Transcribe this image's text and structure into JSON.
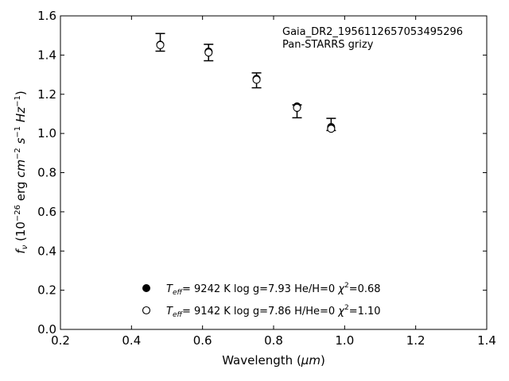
{
  "chart_data": {
    "type": "scatter",
    "xlabel_prefix": "Wavelength (",
    "xlabel_unit": "μm",
    "xlabel_suffix": ")",
    "ylabel_parts": [
      "f",
      "ν",
      " (10",
      "−26",
      " erg ",
      "cm",
      "−2",
      " ",
      "s",
      "−1",
      " ",
      "Hz",
      "−1",
      ")"
    ],
    "xlim": [
      0.2,
      1.4
    ],
    "ylim": [
      0.0,
      1.6
    ],
    "xticks": [
      "0.2",
      "0.4",
      "0.6",
      "0.8",
      "1.0",
      "1.2",
      "1.4"
    ],
    "yticks": [
      "0.0",
      "0.2",
      "0.4",
      "0.6",
      "0.8",
      "1.0",
      "1.2",
      "1.4",
      "1.6"
    ],
    "annotations": [
      "Gaia_DR2_1956112657053495296",
      "Pan-STARRS grizy"
    ],
    "observed": {
      "x": [
        0.481,
        0.617,
        0.752,
        0.866,
        0.962
      ],
      "y": [
        1.465,
        1.413,
        1.271,
        1.113,
        1.046
      ],
      "yerr": [
        0.045,
        0.042,
        0.038,
        0.033,
        0.031
      ]
    },
    "series": [
      {
        "marker": "filled",
        "label_parts": [
          "T",
          "eff",
          "=  9242 K  log g=7.93  He/H=0  ",
          "χ",
          "2",
          "=0.68"
        ],
        "x": [
          0.481,
          0.617,
          0.752,
          0.866,
          0.962
        ],
        "y": [
          1.453,
          1.418,
          1.279,
          1.138,
          1.033
        ]
      },
      {
        "marker": "open",
        "label_parts": [
          "T",
          "eff",
          "=  9142 K  log g=7.86  H/He=0  ",
          "χ",
          "2",
          "=1.10"
        ],
        "x": [
          0.481,
          0.617,
          0.752,
          0.866,
          0.962
        ],
        "y": [
          1.451,
          1.413,
          1.274,
          1.131,
          1.024
        ]
      }
    ]
  }
}
